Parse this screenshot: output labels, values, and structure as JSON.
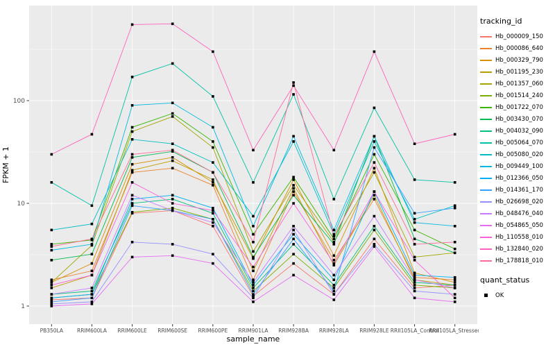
{
  "figure": {
    "bg": "#FFFFFF",
    "panel_bg": "#EBEBEB",
    "grid_color": "#FFFFFF",
    "tick_color": "#333333",
    "tick_label_color": "#4D4D4D",
    "point_color": "#000000"
  },
  "axes": {
    "x_title": "sample_name",
    "y_title": "FPKM + 1",
    "y_tick_labels": [
      "1",
      "10",
      "100"
    ]
  },
  "legend": {
    "tracking_title": "tracking_id",
    "quant_title": "quant_status",
    "quant_items": [
      {
        "label": "OK",
        "color": "#000000"
      }
    ]
  },
  "chart_data": {
    "type": "line",
    "title": "",
    "xlabel": "sample_name",
    "ylabel": "FPKM + 1",
    "y_scale": "log10",
    "ylim": [
      0.7,
      800
    ],
    "y_major_ticks": [
      1,
      10,
      100
    ],
    "y_minor_ticks": [
      3.1623,
      31.623,
      316.23
    ],
    "grid": true,
    "legend_position": "right",
    "point_shape": "filled-square",
    "categories": [
      "PB350LA",
      "RRIM600LA",
      "RRIM600LE",
      "RRIM600SE",
      "RRIM600PE",
      "RRIM901LA",
      "RRIM928BA",
      "RRIM928LA",
      "RRIM928LE",
      "RRII105LA_Control",
      "RRII105LA_Stressed"
    ],
    "series": [
      {
        "name": "Hb_000009_150",
        "color": "#F8766D",
        "values": [
          1.15,
          1.2,
          8.0,
          8.5,
          6.0,
          1.25,
          2.6,
          1.3,
          4.5,
          1.5,
          1.6
        ]
      },
      {
        "name": "Hb_000086_640",
        "color": "#EA8331",
        "values": [
          1.8,
          2.2,
          20,
          22,
          15,
          1.8,
          13,
          2.8,
          11,
          1.9,
          1.8
        ]
      },
      {
        "name": "Hb_000329_790",
        "color": "#D89000",
        "values": [
          1.7,
          2.6,
          24,
          28,
          16,
          2.9,
          17,
          3.1,
          22,
          2.1,
          1.7
        ]
      },
      {
        "name": "Hb_001195_230",
        "color": "#C09B00",
        "values": [
          1.5,
          2.0,
          21,
          26,
          17,
          2.2,
          14,
          2.5,
          12,
          1.8,
          1.6
        ]
      },
      {
        "name": "Hb_001357_060",
        "color": "#A3A500",
        "values": [
          1.7,
          3.9,
          50,
          70,
          35,
          3.4,
          15,
          4.2,
          20,
          3.0,
          3.3
        ]
      },
      {
        "name": "Hb_001514_240",
        "color": "#7CAE00",
        "values": [
          1.2,
          1.3,
          8.2,
          9.0,
          7.0,
          1.4,
          3.2,
          1.5,
          5.5,
          1.6,
          1.5
        ]
      },
      {
        "name": "Hb_001722_070",
        "color": "#39B600",
        "values": [
          4.0,
          4.4,
          55,
          75,
          40,
          5.0,
          18,
          4.5,
          30,
          5.5,
          3.6
        ]
      },
      {
        "name": "Hb_003430_070",
        "color": "#00BB4E",
        "values": [
          2.8,
          3.2,
          28,
          32,
          20,
          3.0,
          12,
          4.0,
          45,
          4.5,
          3.3
        ]
      },
      {
        "name": "Hb_004032_090",
        "color": "#00BF7D",
        "values": [
          1.3,
          1.4,
          10,
          11,
          8.0,
          1.5,
          4.0,
          1.6,
          6.0,
          1.7,
          1.6
        ]
      },
      {
        "name": "Hb_005064_070",
        "color": "#00C1A3",
        "values": [
          16,
          9.5,
          170,
          230,
          110,
          16,
          115,
          11,
          85,
          17,
          16
        ]
      },
      {
        "name": "Hb_005080_020",
        "color": "#00BFC4",
        "values": [
          5.5,
          6.3,
          42,
          38,
          25,
          7.5,
          40,
          5.0,
          40,
          7.0,
          9.5
        ]
      },
      {
        "name": "Hb_009449_100",
        "color": "#00BAE0",
        "values": [
          3.5,
          4.0,
          90,
          95,
          55,
          6.0,
          45,
          5.5,
          45,
          6.5,
          6.0
        ]
      },
      {
        "name": "Hb_012366_050",
        "color": "#00B0F6",
        "values": [
          1.2,
          1.3,
          11,
          12,
          9.0,
          1.6,
          5.0,
          1.8,
          13,
          2.0,
          1.9
        ]
      },
      {
        "name": "Hb_014361_170",
        "color": "#35A2FF",
        "values": [
          1.1,
          1.2,
          9.5,
          8.5,
          7.0,
          1.3,
          4.5,
          1.4,
          35,
          8.0,
          9.0
        ]
      },
      {
        "name": "Hb_026698_020",
        "color": "#9590FF",
        "values": [
          1.05,
          1.1,
          4.2,
          4.0,
          3.2,
          1.2,
          5.5,
          1.3,
          4.0,
          1.4,
          1.3
        ]
      },
      {
        "name": "Hb_048476_040",
        "color": "#C77CFF",
        "values": [
          1.3,
          1.5,
          12,
          8.5,
          6.5,
          1.7,
          6.0,
          2.0,
          7.5,
          1.8,
          1.5
        ]
      },
      {
        "name": "Hb_054865_050",
        "color": "#E76BF3",
        "values": [
          1.0,
          1.05,
          3.0,
          3.1,
          2.6,
          1.1,
          2.0,
          1.15,
          3.8,
          1.2,
          1.1
        ]
      },
      {
        "name": "Hb_110558_010",
        "color": "#FA62DB",
        "values": [
          1.6,
          2.0,
          16,
          10,
          8.5,
          2.4,
          10,
          2.6,
          13,
          2.8,
          1.2
        ]
      },
      {
        "name": "Hb_132840_020",
        "color": "#FF62BC",
        "values": [
          30,
          47,
          550,
          560,
          300,
          33,
          140,
          33,
          300,
          38,
          47
        ]
      },
      {
        "name": "Hb_178818_010",
        "color": "#FF6A98",
        "values": [
          3.8,
          4.5,
          30,
          33,
          20,
          4.2,
          150,
          4.8,
          25,
          4.0,
          4.2
        ]
      }
    ]
  }
}
